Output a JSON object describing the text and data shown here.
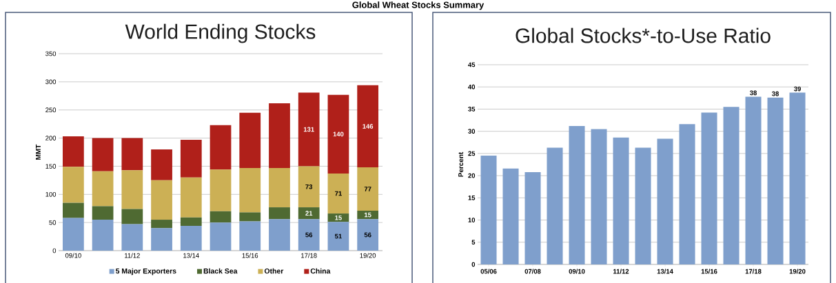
{
  "chart_data": [
    {
      "type": "bar",
      "stacked": true,
      "title": "World Ending Stocks",
      "ylabel": "MMT",
      "annotations": [
        "Global Wheat Stocks Summary"
      ],
      "categories": [
        "09/10",
        null,
        "11/12",
        null,
        "13/14",
        null,
        "15/16",
        null,
        "17/18",
        null,
        "19/20"
      ],
      "series": [
        {
          "name": "5 Major Exporters",
          "color": "#7f9fcc",
          "values": [
            58,
            55,
            47,
            40,
            44,
            50,
            52,
            56,
            56,
            51,
            56
          ],
          "value_labels": [
            null,
            null,
            null,
            null,
            null,
            null,
            null,
            null,
            "56",
            "51",
            "56"
          ]
        },
        {
          "name": "Black Sea",
          "color": "#4f6a32",
          "values": [
            27,
            24,
            27,
            15,
            15,
            20,
            16,
            21,
            21,
            15,
            15
          ],
          "value_labels": [
            null,
            null,
            null,
            null,
            null,
            null,
            null,
            null,
            "21",
            "15",
            "15"
          ]
        },
        {
          "name": "Other",
          "color": "#ccb055",
          "values": [
            64,
            62,
            69,
            70,
            71,
            74,
            79,
            70,
            73,
            71,
            77
          ],
          "value_labels": [
            null,
            null,
            null,
            null,
            null,
            null,
            null,
            null,
            "73",
            "71",
            "77"
          ]
        },
        {
          "name": "China",
          "color": "#b0201a",
          "values": [
            54,
            59,
            57,
            55,
            67,
            79,
            98,
            115,
            131,
            140,
            146
          ],
          "value_labels": [
            null,
            null,
            null,
            null,
            null,
            null,
            null,
            null,
            "131",
            "140",
            "146"
          ]
        }
      ],
      "ylim": [
        0,
        350
      ],
      "yticks": [
        0,
        50,
        100,
        150,
        200,
        250,
        300,
        350
      ],
      "grid": "y",
      "legend": "bottom"
    },
    {
      "type": "bar",
      "title": "Global Stocks*-to-Use Ratio",
      "ylabel": "Percent",
      "categories": [
        "05/06",
        null,
        "07/08",
        null,
        "09/10",
        null,
        "11/12",
        null,
        "13/14",
        null,
        "15/16",
        null,
        "17/18",
        null,
        "19/20"
      ],
      "values": [
        24.5,
        21.6,
        20.8,
        26.3,
        31.2,
        30.5,
        28.6,
        26.3,
        28.3,
        31.6,
        34.2,
        35.5,
        37.8,
        37.6,
        38.7
      ],
      "value_labels": [
        null,
        null,
        null,
        null,
        null,
        null,
        null,
        null,
        null,
        null,
        null,
        null,
        "38",
        "38",
        "39"
      ],
      "color": "#7f9fcc",
      "ylim": [
        0,
        45
      ],
      "yticks": [
        0,
        5,
        10,
        15,
        20,
        25,
        30,
        35,
        40,
        45
      ],
      "grid": "y"
    }
  ]
}
